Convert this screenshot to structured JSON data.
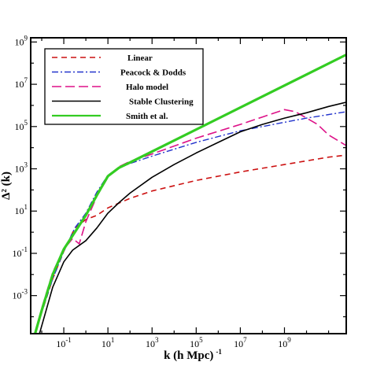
{
  "chart_data": {
    "type": "line",
    "xscale": "log",
    "yscale": "log",
    "xlim_log10": [
      -2.5,
      11.8
    ],
    "ylim_log10": [
      -4.8,
      9.2
    ],
    "xlabel": {
      "main": "k (h Mpc)",
      "sup": "-1"
    },
    "ylabel": "Δ² (k)",
    "x_ticks": [
      {
        "exp": -1,
        "base": "10",
        "sup": "-1"
      },
      {
        "exp": 1,
        "base": "10",
        "sup": "1"
      },
      {
        "exp": 3,
        "base": "10",
        "sup": "3"
      },
      {
        "exp": 5,
        "base": "10",
        "sup": "5"
      },
      {
        "exp": 7,
        "base": "10",
        "sup": "7"
      },
      {
        "exp": 9,
        "base": "10",
        "sup": "9"
      }
    ],
    "y_ticks": [
      {
        "exp": -3,
        "base": "10",
        "sup": "-3"
      },
      {
        "exp": -1,
        "base": "10",
        "sup": "-1"
      },
      {
        "exp": 1,
        "base": "10",
        "sup": "1"
      },
      {
        "exp": 3,
        "base": "10",
        "sup": "3"
      },
      {
        "exp": 5,
        "base": "10",
        "sup": "5"
      },
      {
        "exp": 7,
        "base": "10",
        "sup": "7"
      },
      {
        "exp": 9,
        "base": "10",
        "sup": "9"
      }
    ],
    "grid": false,
    "legend_position": "top-left",
    "series": [
      {
        "name": "Linear",
        "color": "#cc1111",
        "dash": "7,5",
        "width": 1.6,
        "points_log10": [
          [
            -2.3,
            -4.8
          ],
          [
            -2.0,
            -3.8
          ],
          [
            -1.5,
            -2.2
          ],
          [
            -1.0,
            -0.9
          ],
          [
            -0.5,
            0.2
          ],
          [
            0.0,
            0.6
          ],
          [
            0.5,
            0.8
          ],
          [
            1.0,
            1.15
          ],
          [
            2.0,
            1.6
          ],
          [
            3.0,
            1.95
          ],
          [
            5.0,
            2.45
          ],
          [
            7.0,
            2.85
          ],
          [
            9.0,
            3.2
          ],
          [
            11.0,
            3.55
          ],
          [
            11.8,
            3.65
          ]
        ]
      },
      {
        "name": "Peacock & Dodds",
        "color": "#2233cc",
        "dash": "8,3,2,3",
        "width": 1.4,
        "points_log10": [
          [
            -2.3,
            -4.8
          ],
          [
            -2.0,
            -3.8
          ],
          [
            -1.5,
            -2.2
          ],
          [
            -1.0,
            -0.9
          ],
          [
            -0.5,
            0.2
          ],
          [
            0.0,
            0.9
          ],
          [
            0.5,
            1.9
          ],
          [
            1.0,
            2.7
          ],
          [
            1.5,
            3.05
          ],
          [
            2.0,
            3.25
          ],
          [
            3.0,
            3.6
          ],
          [
            5.0,
            4.25
          ],
          [
            7.0,
            4.8
          ],
          [
            9.0,
            5.2
          ],
          [
            10.0,
            5.4
          ],
          [
            11.8,
            5.7
          ]
        ]
      },
      {
        "name": "Halo model",
        "color": "#dd1188",
        "dash": "12,5",
        "width": 1.6,
        "points_log10": [
          [
            -2.3,
            -4.8
          ],
          [
            -2.0,
            -3.6
          ],
          [
            -1.5,
            -1.9
          ],
          [
            -1.0,
            -0.8
          ],
          [
            -0.6,
            -0.3
          ],
          [
            -0.3,
            -0.55
          ],
          [
            0.0,
            0.5
          ],
          [
            0.5,
            1.7
          ],
          [
            1.0,
            2.6
          ],
          [
            1.5,
            3.1
          ],
          [
            2.0,
            3.35
          ],
          [
            3.0,
            3.7
          ],
          [
            5.0,
            4.45
          ],
          [
            7.0,
            5.1
          ],
          [
            8.0,
            5.45
          ],
          [
            9.0,
            5.8
          ],
          [
            9.5,
            5.7
          ],
          [
            10.5,
            5.1
          ],
          [
            11.0,
            4.6
          ],
          [
            11.8,
            4.1
          ]
        ]
      },
      {
        "name": "Stable Clustering",
        "color": "#000000",
        "dash": "",
        "width": 1.6,
        "points_log10": [
          [
            -2.1,
            -4.8
          ],
          [
            -1.5,
            -2.6
          ],
          [
            -1.0,
            -1.4
          ],
          [
            -0.6,
            -0.85
          ],
          [
            0.0,
            -0.4
          ],
          [
            0.5,
            0.2
          ],
          [
            1.0,
            0.9
          ],
          [
            1.5,
            1.4
          ],
          [
            2.0,
            1.85
          ],
          [
            3.0,
            2.6
          ],
          [
            4.0,
            3.2
          ],
          [
            5.0,
            3.75
          ],
          [
            6.0,
            4.25
          ],
          [
            7.0,
            4.75
          ],
          [
            8.0,
            5.1
          ],
          [
            9.0,
            5.4
          ],
          [
            10.0,
            5.65
          ],
          [
            11.0,
            5.95
          ],
          [
            11.8,
            6.15
          ]
        ]
      },
      {
        "name": "Smith et al.",
        "color": "#33cc22",
        "dash": "",
        "width": 3.2,
        "points_log10": [
          [
            -2.3,
            -4.8
          ],
          [
            -2.0,
            -3.7
          ],
          [
            -1.5,
            -2.0
          ],
          [
            -1.0,
            -0.8
          ],
          [
            -0.5,
            0.0
          ],
          [
            0.0,
            0.8
          ],
          [
            0.5,
            1.75
          ],
          [
            1.0,
            2.65
          ],
          [
            1.5,
            3.05
          ],
          [
            2.0,
            3.3
          ],
          [
            11.8,
            8.4
          ]
        ]
      }
    ]
  }
}
